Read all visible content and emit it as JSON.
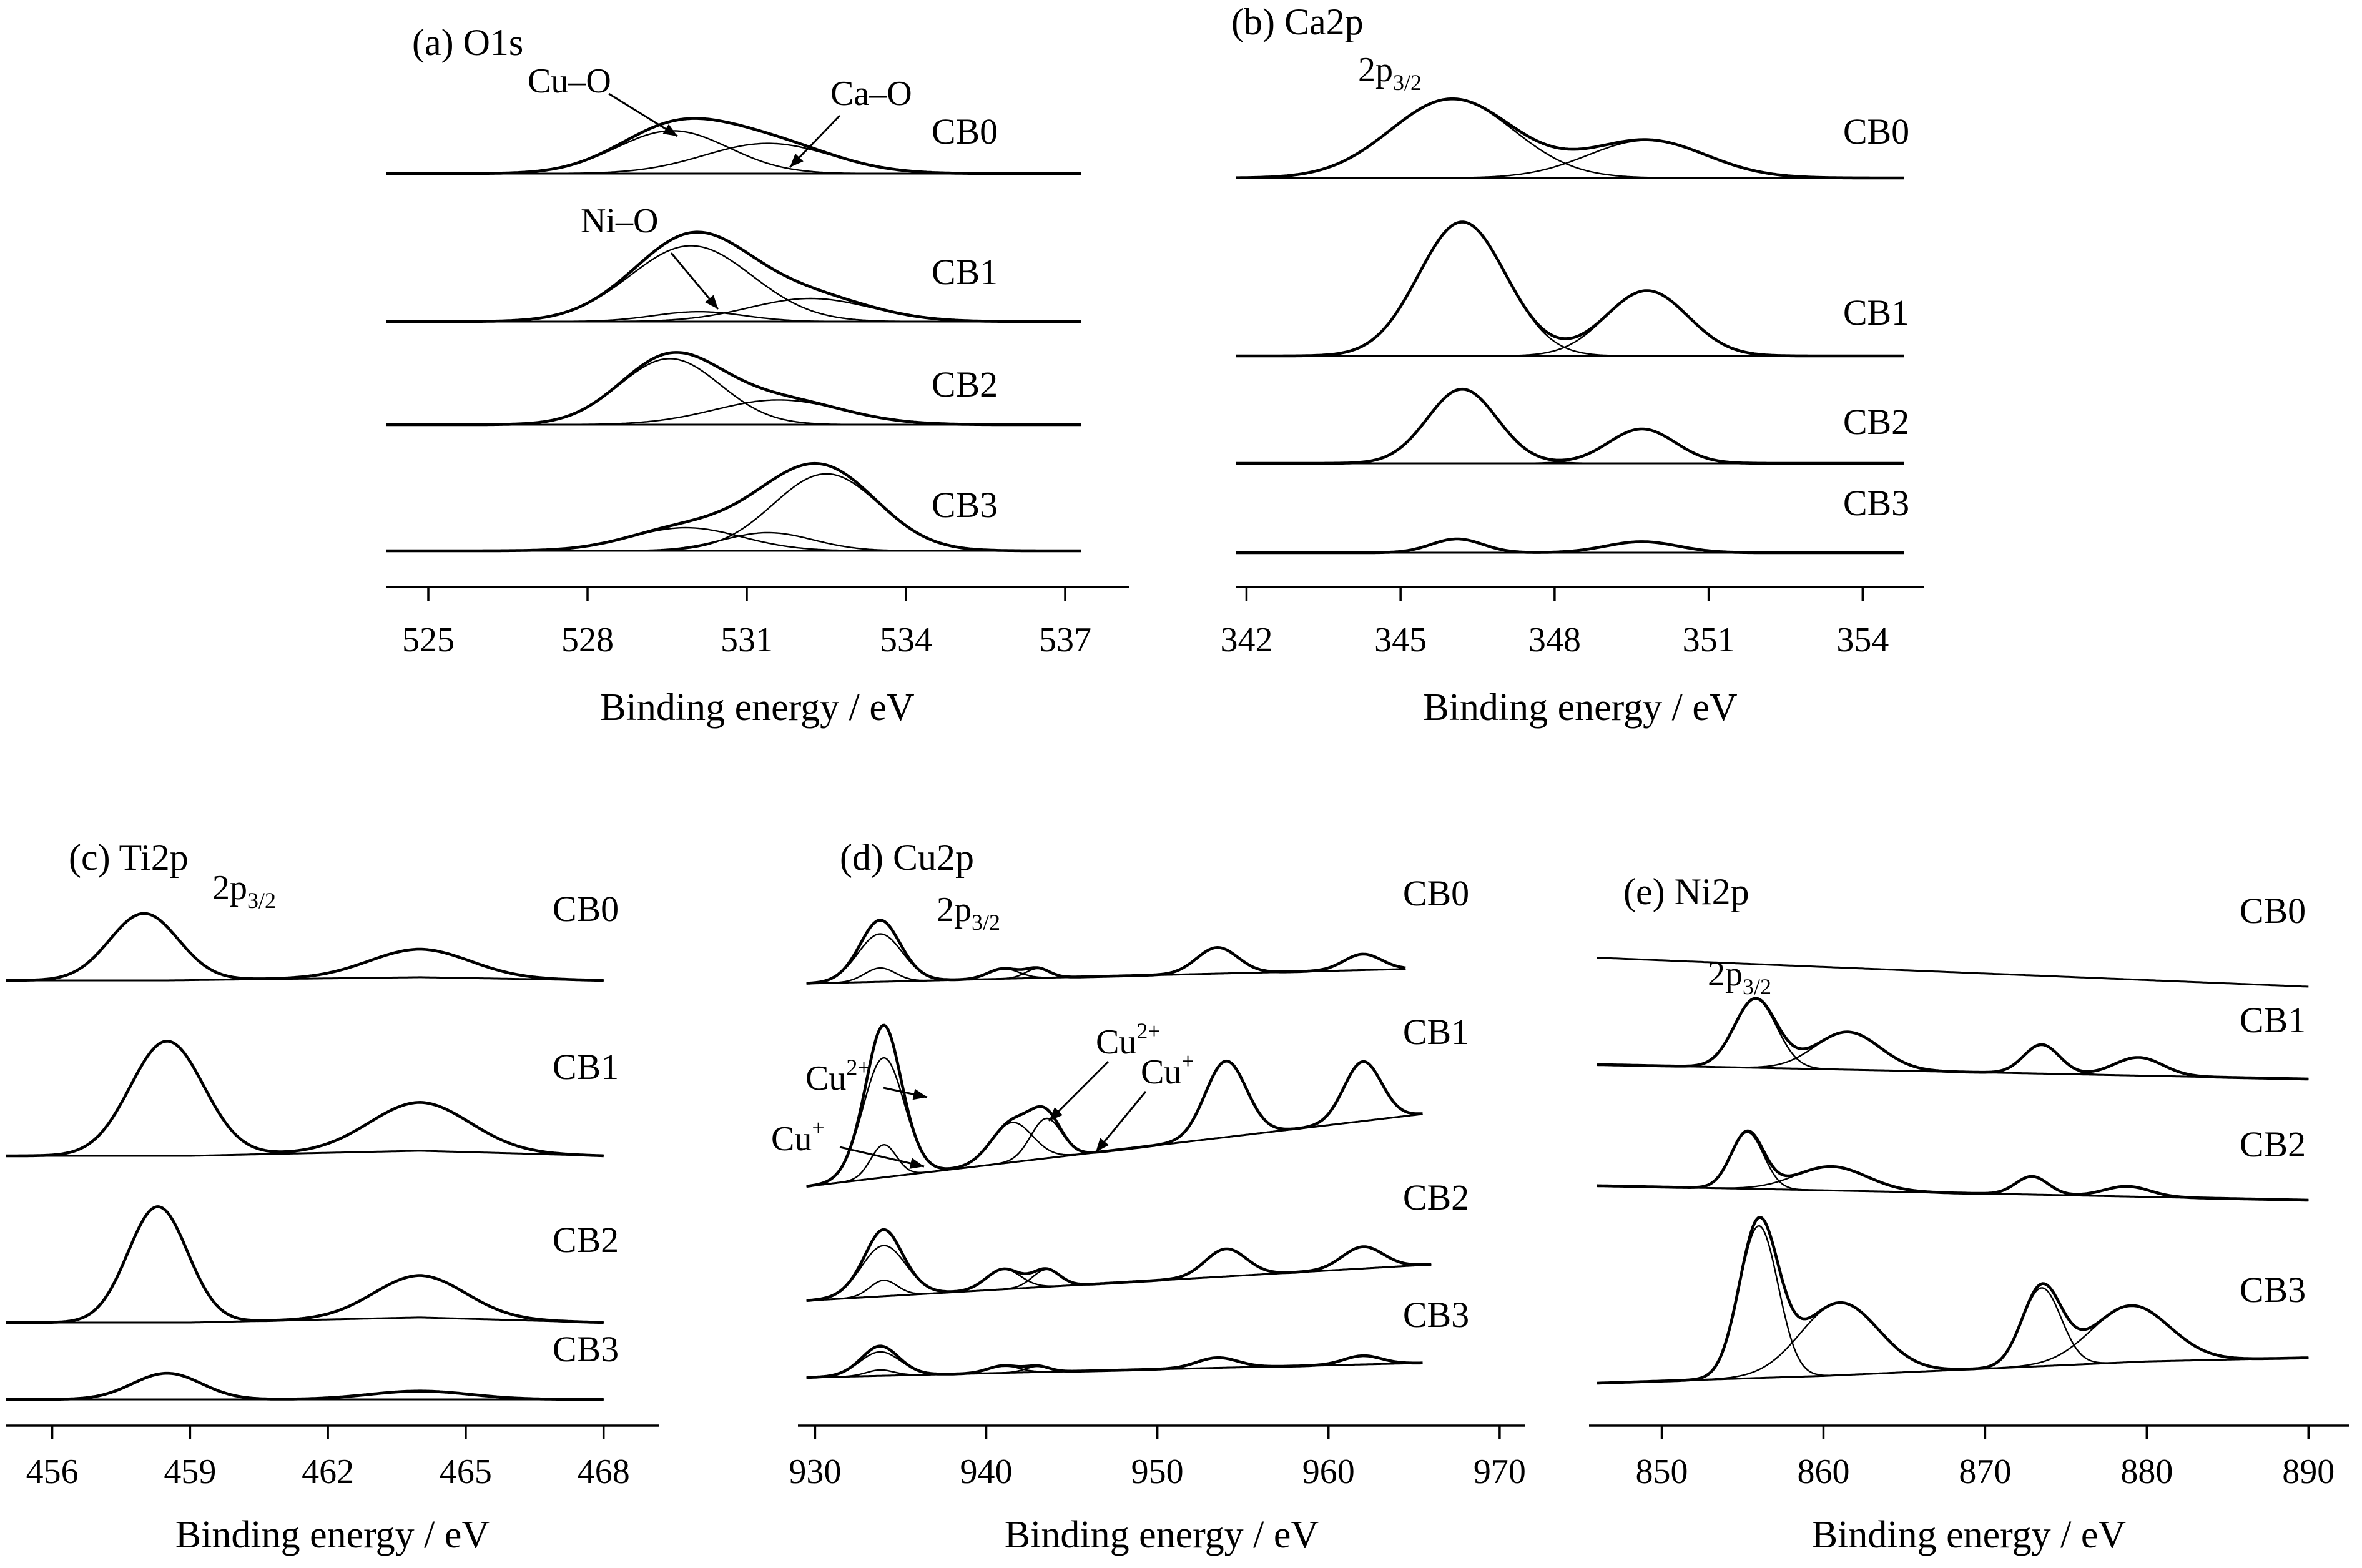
{
  "chart_data": [
    {
      "id": "O1s",
      "type": "line",
      "title": "(a) O1s",
      "xlabel": "Binding  energy / eV",
      "xticks": [
        525,
        528,
        531,
        534,
        537
      ],
      "xlim": [
        524.2,
        538.2
      ],
      "series": [
        {
          "name": "CB0",
          "baseline": [
            [
              524.2,
              0
            ],
            [
              537.3,
              0
            ]
          ],
          "components": [
            [
              529.6,
              0.78,
              1.06
            ],
            [
              531.4,
              0.55,
              1.2
            ]
          ]
        },
        {
          "name": "CB1",
          "baseline": [
            [
              524.2,
              0
            ],
            [
              537.3,
              0
            ]
          ],
          "components": [
            [
              529.95,
              1.38,
              1.15
            ],
            [
              530.1,
              0.18,
              0.85
            ],
            [
              532.2,
              0.42,
              1.15
            ]
          ]
        },
        {
          "name": "CB2",
          "baseline": [
            [
              524.2,
              0
            ],
            [
              537.3,
              0
            ]
          ],
          "components": [
            [
              529.55,
              1.2,
              0.95
            ],
            [
              531.6,
              0.45,
              1.2
            ]
          ]
        },
        {
          "name": "CB3",
          "baseline": [
            [
              524.2,
              0
            ],
            [
              537.3,
              0
            ]
          ],
          "components": [
            [
              529.85,
              0.42,
              1.05
            ],
            [
              531.4,
              0.33,
              0.85
            ],
            [
              532.5,
              1.4,
              1.0
            ]
          ]
        }
      ],
      "annotations": [
        "Cu–O",
        "Ca–O",
        "Ni–O"
      ]
    },
    {
      "id": "Ca2p",
      "type": "line",
      "title": "(b) Ca2p",
      "peak_label": "2p",
      "peak_label_sub": "3/2",
      "xlabel": "Binding  energy / eV",
      "xticks": [
        342,
        345,
        348,
        351,
        354
      ],
      "xlim": [
        341.8,
        355.2
      ],
      "series": [
        {
          "name": "CB0",
          "baseline": [
            [
              341.8,
              0
            ],
            [
              354.8,
              0
            ]
          ],
          "components": [
            [
              346.0,
              1.15,
              1.2
            ],
            [
              349.8,
              0.55,
              1.15
            ]
          ]
        },
        {
          "name": "CB1",
          "baseline": [
            [
              341.8,
              0
            ],
            [
              354.8,
              0
            ]
          ],
          "components": [
            [
              346.2,
              1.95,
              0.85
            ],
            [
              349.8,
              0.95,
              0.8
            ]
          ]
        },
        {
          "name": "CB2",
          "baseline": [
            [
              341.8,
              0
            ],
            [
              354.8,
              0
            ]
          ],
          "components": [
            [
              346.2,
              1.08,
              0.68
            ],
            [
              349.7,
              0.5,
              0.65
            ]
          ]
        },
        {
          "name": "CB3",
          "baseline": [
            [
              341.8,
              0
            ],
            [
              354.8,
              0
            ]
          ],
          "components": [
            [
              346.1,
              0.2,
              0.5
            ],
            [
              349.7,
              0.16,
              0.7
            ]
          ]
        }
      ]
    },
    {
      "id": "Ti2p",
      "type": "line",
      "title": "(c) Ti2p",
      "peak_label": "2p",
      "peak_label_sub": "3/2",
      "xlabel": "Binding  energy / eV",
      "xticks": [
        456,
        459,
        462,
        465,
        468
      ],
      "xlim": [
        455.0,
        469.2
      ],
      "series": [
        {
          "name": "CB0",
          "baseline": [
            [
              455.0,
              0
            ],
            [
              458.5,
              0
            ],
            [
              464.0,
              0.05
            ],
            [
              468.0,
              0
            ]
          ],
          "components": [
            [
              458.0,
              1.05,
              0.75
            ],
            [
              464.0,
              0.44,
              1.1
            ]
          ]
        },
        {
          "name": "CB1",
          "baseline": [
            [
              455.0,
              0
            ],
            [
              459.0,
              0
            ],
            [
              464.0,
              0.08
            ],
            [
              468.0,
              0
            ]
          ],
          "components": [
            [
              458.5,
              1.8,
              0.8
            ],
            [
              464.0,
              0.76,
              1.1
            ]
          ]
        },
        {
          "name": "CB2",
          "baseline": [
            [
              455.0,
              0
            ],
            [
              459.0,
              0
            ],
            [
              464.0,
              0.08
            ],
            [
              468.0,
              0
            ]
          ],
          "components": [
            [
              458.3,
              1.82,
              0.65
            ],
            [
              464.0,
              0.66,
              1.0
            ]
          ]
        },
        {
          "name": "CB3",
          "baseline": [
            [
              455.0,
              0
            ],
            [
              468.0,
              0
            ]
          ],
          "components": [
            [
              458.5,
              0.41,
              0.75
            ],
            [
              464.0,
              0.13,
              1.1
            ]
          ]
        }
      ]
    },
    {
      "id": "Cu2p",
      "type": "line",
      "title": "(d)  Cu2p",
      "peak_label": "2p",
      "peak_label_sub": "3/2",
      "xlabel": "Binding  energy / eV",
      "xticks": [
        930,
        940,
        950,
        960,
        970
      ],
      "xlim": [
        929.0,
        971.5
      ],
      "series": [
        {
          "name": "CB0",
          "baseline": [
            [
              929.5,
              0
            ],
            [
              964.5,
              0.2
            ]
          ],
          "components": [
            [
              933.8,
              0.66,
              1.3
            ],
            [
              933.8,
              0.19,
              0.9
            ],
            [
              941.0,
              0.14,
              0.9
            ],
            [
              943.0,
              0.13,
              0.7
            ],
            [
              953.5,
              0.36,
              1.2
            ],
            [
              962.0,
              0.22,
              1.1
            ]
          ]
        },
        {
          "name": "CB1",
          "baseline": [
            [
              929.5,
              0
            ],
            [
              965.5,
              1.0
            ]
          ],
          "components": [
            [
              934.0,
              1.65,
              1.2
            ],
            [
              934.0,
              0.45,
              0.75
            ],
            [
              941.5,
              0.55,
              1.2
            ],
            [
              943.5,
              0.55,
              0.9
            ],
            [
              954.0,
              1.05,
              1.2
            ],
            [
              962.0,
              0.82,
              1.1
            ]
          ]
        },
        {
          "name": "CB2",
          "baseline": [
            [
              929.5,
              0
            ],
            [
              966.0,
              0.5
            ]
          ],
          "components": [
            [
              934.0,
              0.7,
              1.3
            ],
            [
              934.0,
              0.22,
              0.8
            ],
            [
              941.0,
              0.28,
              1.0
            ],
            [
              943.5,
              0.24,
              0.8
            ],
            [
              954.0,
              0.38,
              1.2
            ],
            [
              962.0,
              0.3,
              1.2
            ]
          ]
        },
        {
          "name": "CB3",
          "baseline": [
            [
              929.5,
              0
            ],
            [
              965.5,
              0.2
            ]
          ],
          "components": [
            [
              933.8,
              0.33,
              1.2
            ],
            [
              933.8,
              0.08,
              0.8
            ],
            [
              941.0,
              0.1,
              0.9
            ],
            [
              943.0,
              0.08,
              0.7
            ],
            [
              953.5,
              0.14,
              1.2
            ],
            [
              962.0,
              0.12,
              1.1
            ]
          ]
        }
      ],
      "annotations": [
        "Cu",
        "2+",
        "Cu",
        "+",
        "Cu",
        "2+",
        "Cu",
        "+"
      ]
    },
    {
      "id": "Ni2p",
      "type": "line",
      "title": "(e) Ni2p",
      "peak_label": "2p",
      "peak_label_sub": "3/2",
      "xlabel": "Binding  energy / eV",
      "xticks": [
        850,
        860,
        870,
        880,
        890
      ],
      "xlim": [
        845.5,
        892.5
      ],
      "series": [
        {
          "name": "CB0",
          "baseline": [
            [
              846.0,
              0.4
            ],
            [
              890.0,
              0
            ]
          ],
          "components": []
        },
        {
          "name": "CB1",
          "baseline": [
            [
              846.0,
              0.2
            ],
            [
              890.0,
              0
            ]
          ],
          "components": [
            [
              855.8,
              0.95,
              1.3
            ],
            [
              861.5,
              0.52,
              2.0
            ],
            [
              873.5,
              0.4,
              1.1
            ],
            [
              879.5,
              0.25,
              1.5
            ]
          ]
        },
        {
          "name": "CB2",
          "baseline": [
            [
              846.0,
              0.2
            ],
            [
              890.0,
              0
            ]
          ],
          "components": [
            [
              855.3,
              0.78,
              1.0
            ],
            [
              860.5,
              0.33,
              2.2
            ],
            [
              872.9,
              0.25,
              1.0
            ],
            [
              878.8,
              0.14,
              1.4
            ]
          ]
        },
        {
          "name": "CB3",
          "baseline": [
            [
              846.0,
              0
            ],
            [
              860.0,
              0.1
            ],
            [
              880.0,
              0.3
            ],
            [
              890.0,
              0.35
            ]
          ],
          "components": [
            [
              856.0,
              2.1,
              1.2
            ],
            [
              861.0,
              1.0,
              2.4
            ],
            [
              873.5,
              1.08,
              1.2
            ],
            [
              879.0,
              0.78,
              2.4
            ]
          ]
        }
      ]
    }
  ]
}
